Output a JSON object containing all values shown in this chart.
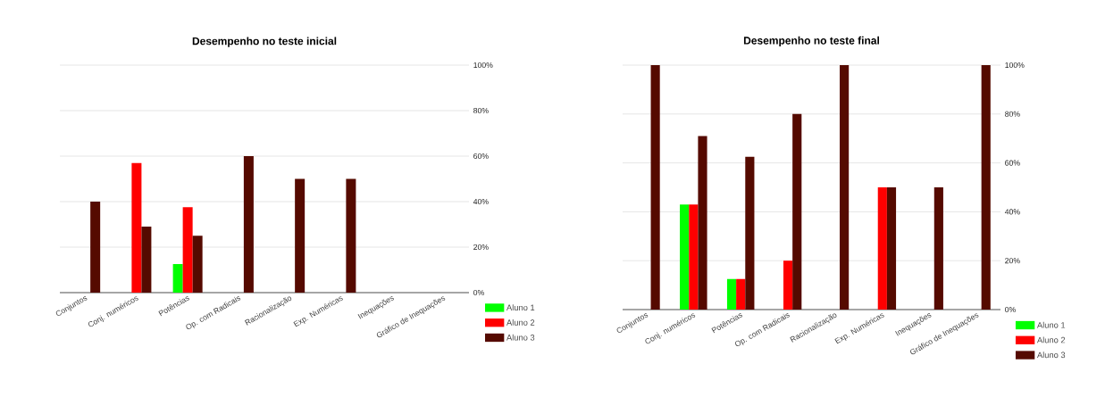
{
  "chart_data": [
    {
      "type": "bar",
      "title": "Desempenho no teste inicial",
      "categories": [
        "Conjuntos",
        "Conj. numéricos",
        "Potências",
        "Op. com Radicais",
        "Racionalização",
        "Exp. Numéricas",
        "Inequações",
        "Gráfico de Inequações"
      ],
      "series": [
        {
          "name": "Aluno 1",
          "color": "#00ff00",
          "values": [
            0,
            0,
            12.5,
            0,
            0,
            0,
            0,
            0
          ]
        },
        {
          "name": "Aluno 2",
          "color": "#ff0000",
          "values": [
            0,
            57,
            37.5,
            0,
            0,
            0,
            0,
            0
          ]
        },
        {
          "name": "Aluno 3",
          "color": "#550a00",
          "values": [
            40,
            29,
            25,
            60,
            50,
            50,
            0,
            0
          ]
        }
      ],
      "ylim": [
        0,
        100
      ],
      "yticks": [
        {
          "value": 0,
          "label": "0%"
        },
        {
          "value": 20,
          "label": "20%"
        },
        {
          "value": 40,
          "label": "40%"
        },
        {
          "value": 60,
          "label": "60%"
        },
        {
          "value": 80,
          "label": "80%"
        },
        {
          "value": 100,
          "label": "100%"
        }
      ],
      "grid": "y",
      "legend": "bottom right"
    },
    {
      "type": "bar",
      "title": "Desempenho no teste final",
      "categories": [
        "Conjuntos",
        "Conj. numéricos",
        "Potências",
        "Op. com Radicais",
        "Racionalização",
        "Exp. Numéricas",
        "Inequações",
        "Gráfico de Inequações"
      ],
      "series": [
        {
          "name": "Aluno 1",
          "color": "#00ff00",
          "values": [
            0,
            43,
            12.5,
            0,
            0,
            0,
            0,
            0
          ]
        },
        {
          "name": "Aluno 2",
          "color": "#ff0000",
          "values": [
            0,
            43,
            12.5,
            20,
            0,
            50,
            0,
            0
          ]
        },
        {
          "name": "Aluno 3",
          "color": "#550a00",
          "values": [
            100,
            71,
            62.5,
            80,
            100,
            50,
            50,
            100
          ]
        }
      ],
      "ylim": [
        0,
        100
      ],
      "yticks": [
        {
          "value": 0,
          "label": "0%"
        },
        {
          "value": 20,
          "label": "20%"
        },
        {
          "value": 40,
          "label": "40%"
        },
        {
          "value": 60,
          "label": "60%"
        },
        {
          "value": 80,
          "label": "80%"
        },
        {
          "value": 100,
          "label": "100%"
        }
      ],
      "grid": "y",
      "legend": "bottom right"
    }
  ]
}
